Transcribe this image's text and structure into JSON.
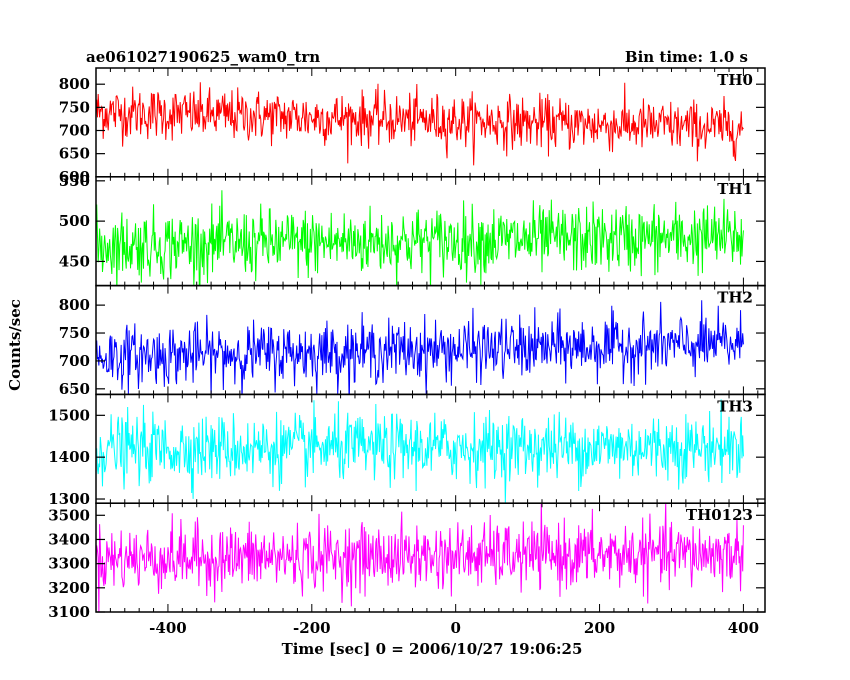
{
  "header": {
    "title": "ae061027190625_wam0_trn",
    "bin_time": "Bin time: 1.0 s"
  },
  "axes": {
    "xlabel": "Time [sec] 0 = 2006/10/27 19:06:25",
    "ylabel": "Counts/sec"
  },
  "chart_data": {
    "type": "line",
    "title": "ae061027190625_wam0_trn",
    "subtitle": "Bin time: 1.0 s",
    "xlabel": "Time [sec] 0 = 2006/10/27 19:06:25",
    "ylabel": "Counts/sec",
    "xlim": [
      -500,
      430
    ],
    "x_ticks": [
      -400,
      -200,
      0,
      200,
      400
    ],
    "data_x_range": [
      -500,
      400
    ],
    "bin_time_s": 1.0,
    "grid": false,
    "panels": [
      {
        "name": "TH0",
        "color": "#ff0000",
        "ylim": [
          600,
          835
        ],
        "y_ticks": [
          600,
          650,
          700,
          750,
          800
        ],
        "mean_start": 740,
        "mean_end": 705,
        "noise_sigma": 28
      },
      {
        "name": "TH1",
        "color": "#00ff00",
        "ylim": [
          420,
          555
        ],
        "y_ticks": [
          450,
          500,
          550
        ],
        "mean_start": 470,
        "mean_end": 480,
        "noise_sigma": 21
      },
      {
        "name": "TH2",
        "color": "#0000ff",
        "ylim": [
          640,
          835
        ],
        "y_ticks": [
          650,
          700,
          750,
          800
        ],
        "mean_start": 708,
        "mean_end": 730,
        "noise_sigma": 27
      },
      {
        "name": "TH3",
        "color": "#00ffff",
        "ylim": [
          1290,
          1550
        ],
        "y_ticks": [
          1300,
          1400,
          1500
        ],
        "mean_start": 1420,
        "mean_end": 1425,
        "noise_sigma": 40
      },
      {
        "name": "TH0123",
        "color": "#ff00ff",
        "ylim": [
          3100,
          3550
        ],
        "y_ticks": [
          3100,
          3200,
          3300,
          3400,
          3500
        ],
        "mean_start": 3320,
        "mean_end": 3340,
        "noise_sigma": 68
      }
    ]
  }
}
